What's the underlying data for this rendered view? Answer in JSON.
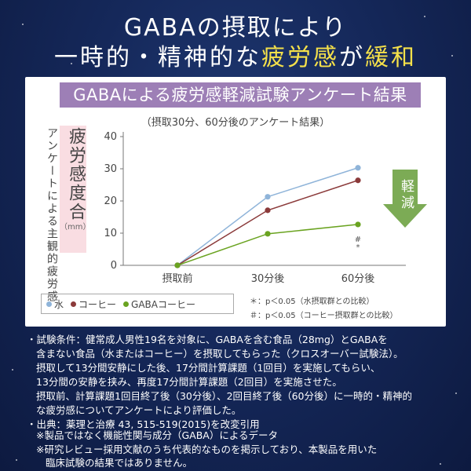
{
  "headline": {
    "line1": "GABAの摂取により",
    "line2_a": "一時的・精神的な",
    "line2_hl1": "疲労感",
    "line2_b": "が",
    "line2_hl2": "緩和"
  },
  "chart_data": {
    "type": "line",
    "title": "GABAによる疲労感軽減試験アンケート結果",
    "subtitle": "（摂取30分、60分後のアンケート結果）",
    "ylabel_outer": "アンケートによる主観的疲労感",
    "ylabel_main": "疲労感度合",
    "ylabel_unit": "（mm）",
    "categories": [
      "摂取前",
      "30分後",
      "60分後"
    ],
    "ylim": [
      0,
      40
    ],
    "yticks": [
      "0",
      "10",
      "20",
      "30",
      "40"
    ],
    "series": [
      {
        "name": "水",
        "color": "#8fb4d9",
        "values": [
          0,
          21.3,
          30.3
        ]
      },
      {
        "name": "コーヒー",
        "color": "#8b3a3a",
        "values": [
          0,
          17.1,
          26.4
        ]
      },
      {
        "name": "GABAコーヒー",
        "color": "#6aa320",
        "values": [
          0,
          9.8,
          12.7
        ]
      }
    ],
    "annotations": [
      "#",
      "*"
    ],
    "arrow_label": "軽減",
    "sig_notes": [
      "＊：p＜0.05（水摂取群との比較）",
      "＃：p＜0.05（コーヒー摂取群との比較）"
    ]
  },
  "notes": [
    "・試験条件：健常成人男性19名を対象に、GABAを含む食品（28mg）とGABAを",
    "含まない食品（水またはコーヒー）を摂取してもらった（クロスオーバー試験法）。",
    "摂取して13分間安静にした後、17分間計算課題（1回目）を実施してもらい、",
    "13分間の安静を挟み、再度17分間計算課題（2回目）を実施させた。",
    "摂取前、計算課題1回目終了後（30分後）、2回目終了後（60分後）に一時的・精神的",
    "な疲労感についてアンケートにより評価した。",
    "・出典：薬理と治療 43, 515-519(2015)を改変引用"
  ],
  "footnotes": [
    "※製品ではなく機能性関与成分（GABA）によるデータ",
    "※研究レビュー採用文献のうち代表的なものを掲示しており、本製品を用いた",
    "臨床試験の結果ではありません。"
  ]
}
